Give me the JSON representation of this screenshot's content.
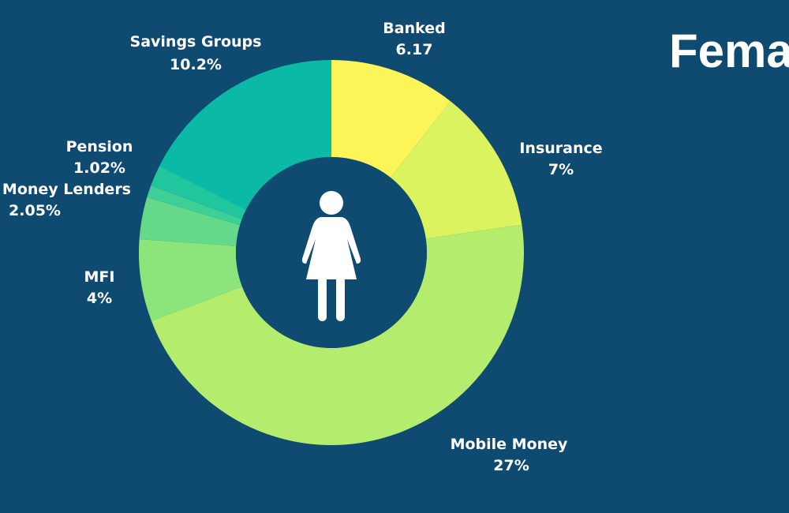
{
  "title": "Fema",
  "chart_data": {
    "type": "pie",
    "variant": "donut",
    "center_icon": "female-person-icon",
    "slices": [
      {
        "label": "Banked",
        "value_label": "6.17",
        "value": 6.17,
        "color": "#fcf55a"
      },
      {
        "label": "Insurance",
        "value_label": "7%",
        "value": 7,
        "color": "#dbf35f"
      },
      {
        "label": "Mobile Money",
        "value_label": "27%",
        "value": 27,
        "color": "#b4ed6e"
      },
      {
        "label": "MFI",
        "value_label": "4%",
        "value": 4,
        "color": "#8ce57b"
      },
      {
        "label": "al Money Lenders",
        "value_label": "2.05%",
        "value": 2.05,
        "color": "#64d98a"
      },
      {
        "label": "",
        "value_label": "",
        "value": 0.6,
        "color": "#3ecf96"
      },
      {
        "label": "Pension",
        "value_label": "1.02%",
        "value": 1.02,
        "color": "#21c69f"
      },
      {
        "label": "Savings Groups",
        "value_label": "10.2%",
        "value": 10.2,
        "color": "#0abaa6"
      }
    ]
  }
}
